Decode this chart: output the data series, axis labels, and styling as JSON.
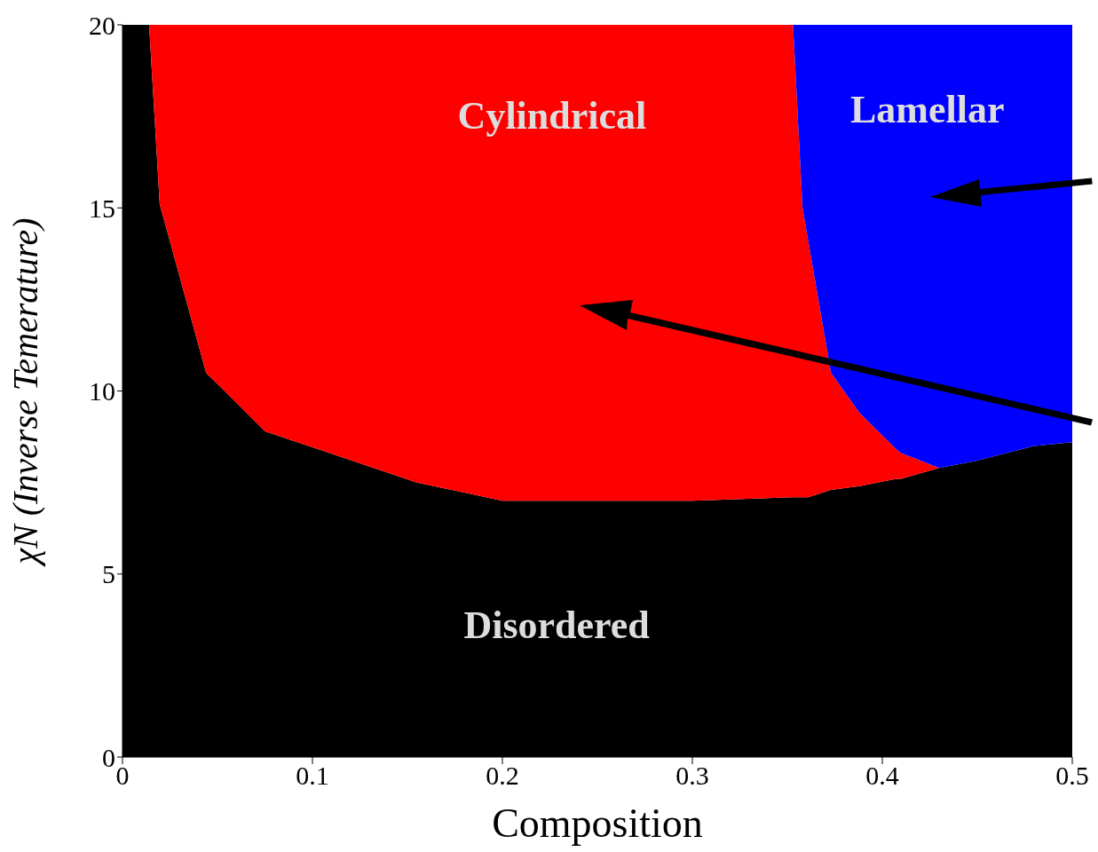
{
  "chart_data": {
    "type": "area",
    "stacked": true,
    "xlabel": "Composition",
    "ylabel": "χN (Inverse Temerature)",
    "x": [
      0,
      0.014,
      0.0196,
      0.044,
      0.075,
      0.155,
      0.2,
      0.3,
      0.353,
      0.358,
      0.361,
      0.373,
      0.388,
      0.4075,
      0.41,
      0.43,
      0.45,
      0.48,
      0.5
    ],
    "series": [
      {
        "name": "Disordered",
        "color": "#000000",
        "values": [
          20,
          20,
          15.1,
          10.5,
          8.9,
          7.5,
          7.0,
          7.0,
          7.1,
          7.1,
          7.1,
          7.3,
          7.4,
          7.6,
          7.6,
          7.9,
          8.1,
          8.5,
          8.6
        ]
      },
      {
        "name": "Cylindrical",
        "color": "#ff0000",
        "values": [
          0,
          0,
          4.9,
          9.5,
          11.1,
          12.5,
          13.0,
          13.0,
          12.9,
          7.9,
          7.0,
          3.2,
          2.0,
          0.8,
          0.7,
          0,
          0,
          0,
          0
        ]
      },
      {
        "name": "Lamellar",
        "color": "#0000ff",
        "values": [
          0,
          0,
          0,
          0,
          0,
          0,
          0,
          0,
          0,
          5.0,
          5.9,
          9.5,
          10.6,
          11.6,
          11.7,
          12.1,
          11.9,
          11.5,
          11.4
        ]
      }
    ],
    "xlim": [
      0,
      0.5
    ],
    "ylim": [
      0,
      20
    ],
    "xticks": [
      0,
      0.1,
      0.2,
      0.3,
      0.4,
      0.5
    ],
    "yticks": [
      0,
      5,
      10,
      15,
      20
    ],
    "grid": false,
    "legend": false
  }
}
